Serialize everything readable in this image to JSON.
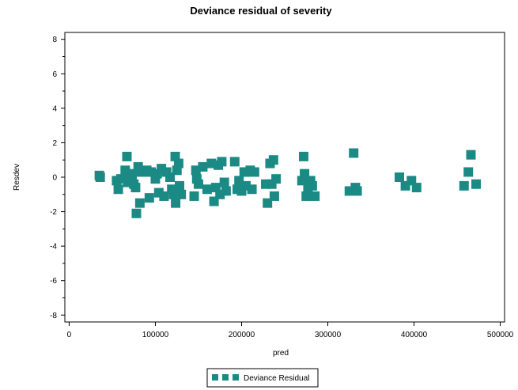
{
  "chart_data": {
    "type": "scatter",
    "title": "Deviance residual of severity",
    "xlabel": "pred",
    "ylabel": "Resdev",
    "xlim": [
      -5000,
      505000
    ],
    "ylim": [
      -8.4,
      8.4
    ],
    "x_ticks": [
      0,
      100000,
      200000,
      300000,
      400000,
      500000
    ],
    "x_tick_labels": [
      "0",
      "100000",
      "200000",
      "300000",
      "400000",
      "500000"
    ],
    "y_ticks": [
      -8,
      -6,
      -4,
      -2,
      0,
      2,
      4,
      6,
      8
    ],
    "y_tick_labels": [
      "-8",
      "-6",
      "-4",
      "-2",
      "0",
      "2",
      "4",
      "6",
      "8"
    ],
    "grid": false,
    "legend_position": "bottom-center",
    "marker": "square",
    "color": "#1c8a84",
    "series": [
      {
        "name": "Deviance Residual",
        "points": [
          [
            35000,
            0.1
          ],
          [
            36000,
            0.0
          ],
          [
            55000,
            -0.2
          ],
          [
            57000,
            -0.7
          ],
          [
            60000,
            -0.1
          ],
          [
            65000,
            0.4
          ],
          [
            67000,
            1.2
          ],
          [
            68000,
            -0.3
          ],
          [
            70000,
            0.2
          ],
          [
            73000,
            0.1
          ],
          [
            75000,
            -0.4
          ],
          [
            77000,
            -0.6
          ],
          [
            78000,
            -2.1
          ],
          [
            80000,
            0.6
          ],
          [
            82000,
            -1.5
          ],
          [
            84000,
            0.3
          ],
          [
            90000,
            0.4
          ],
          [
            93000,
            -1.2
          ],
          [
            95000,
            0.3
          ],
          [
            100000,
            -0.1
          ],
          [
            102000,
            0.2
          ],
          [
            104000,
            -0.9
          ],
          [
            107000,
            0.5
          ],
          [
            110000,
            -1.1
          ],
          [
            113000,
            0.3
          ],
          [
            117000,
            0.0
          ],
          [
            119000,
            -0.7
          ],
          [
            121000,
            -1.0
          ],
          [
            123000,
            1.2
          ],
          [
            123500,
            -1.5
          ],
          [
            125000,
            0.4
          ],
          [
            127000,
            0.8
          ],
          [
            128000,
            -0.5
          ],
          [
            130000,
            -1.0
          ],
          [
            145000,
            -1.1
          ],
          [
            147000,
            0.4
          ],
          [
            148000,
            -0.1
          ],
          [
            150000,
            -0.4
          ],
          [
            155000,
            0.6
          ],
          [
            160000,
            -0.7
          ],
          [
            165000,
            0.8
          ],
          [
            168000,
            -1.4
          ],
          [
            170000,
            -0.6
          ],
          [
            173000,
            0.7
          ],
          [
            175000,
            -1.0
          ],
          [
            177000,
            0.9
          ],
          [
            180000,
            -0.3
          ],
          [
            182000,
            -0.8
          ],
          [
            192000,
            0.9
          ],
          [
            195000,
            -0.7
          ],
          [
            197000,
            -0.2
          ],
          [
            200000,
            -0.8
          ],
          [
            203000,
            0.3
          ],
          [
            205000,
            -0.5
          ],
          [
            207000,
            0.3
          ],
          [
            210000,
            0.4
          ],
          [
            212000,
            -0.7
          ],
          [
            215000,
            0.3
          ],
          [
            228000,
            -0.4
          ],
          [
            230000,
            -1.5
          ],
          [
            233000,
            0.8
          ],
          [
            235000,
            -0.4
          ],
          [
            237000,
            1.0
          ],
          [
            238000,
            -1.1
          ],
          [
            240000,
            -0.1
          ],
          [
            270000,
            -0.2
          ],
          [
            272000,
            1.2
          ],
          [
            273000,
            0.2
          ],
          [
            275000,
            -1.1
          ],
          [
            277000,
            -0.6
          ],
          [
            280000,
            -0.2
          ],
          [
            282000,
            -0.5
          ],
          [
            285000,
            -1.1
          ],
          [
            325000,
            -0.8
          ],
          [
            330000,
            1.4
          ],
          [
            332000,
            -0.6
          ],
          [
            334000,
            -0.8
          ],
          [
            383000,
            0.0
          ],
          [
            390000,
            -0.5
          ],
          [
            397000,
            -0.2
          ],
          [
            403000,
            -0.6
          ],
          [
            458000,
            -0.5
          ],
          [
            463000,
            0.3
          ],
          [
            466000,
            1.3
          ],
          [
            472000,
            -0.4
          ]
        ]
      }
    ]
  },
  "legend": {
    "label": "Deviance Residual"
  }
}
